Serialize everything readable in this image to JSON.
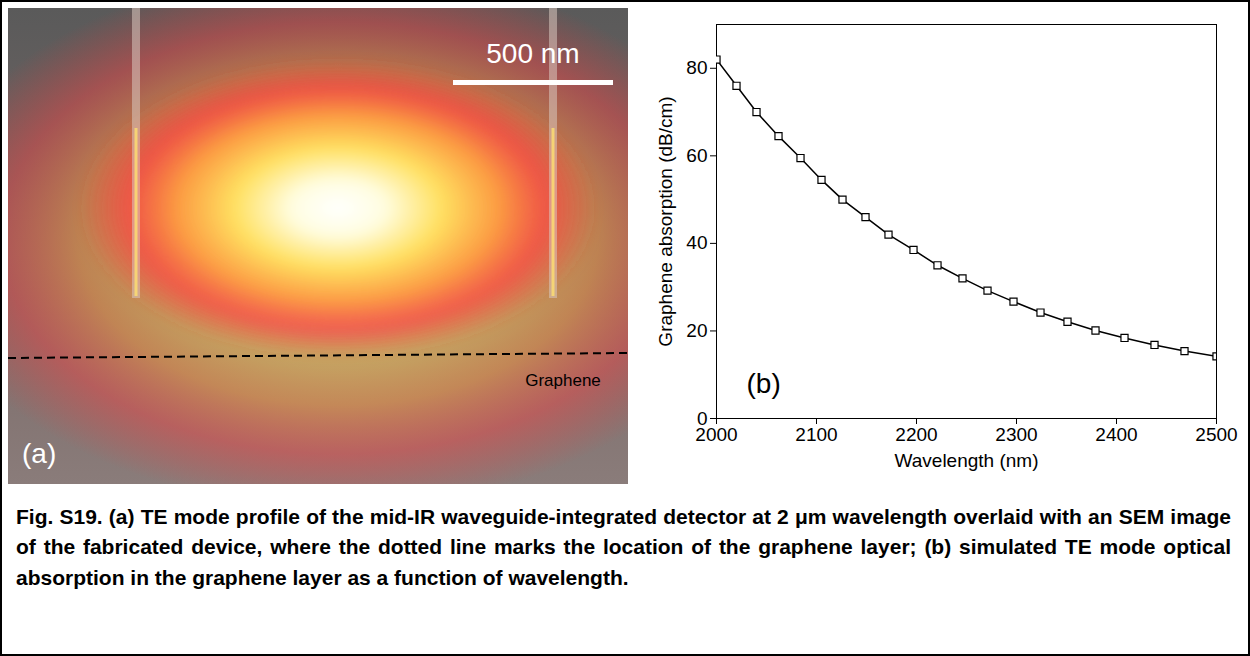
{
  "chart_data": {
    "type": "line",
    "x_label": "Wavelength (nm)",
    "y_label": "Graphene absorption (dB/cm)",
    "annotations": [
      "(b)"
    ],
    "x": [
      2000,
      2020,
      2040,
      2062,
      2084,
      2105,
      2126,
      2149,
      2172,
      2197,
      2221,
      2246,
      2271,
      2297,
      2324,
      2351,
      2379,
      2408,
      2438,
      2468,
      2500
    ],
    "values": [
      82,
      76,
      70,
      64.5,
      59.5,
      54.5,
      50,
      46,
      42,
      38.5,
      35,
      32,
      29.2,
      26.7,
      24.2,
      22.1,
      20.1,
      18.4,
      16.8,
      15.4,
      14.2
    ],
    "color": "#000000",
    "marker": "square",
    "line_style": "solid",
    "xlim": [
      2000,
      2500
    ],
    "xticks": [
      2000,
      2100,
      2200,
      2300,
      2400,
      2500
    ],
    "ylim": [
      0,
      90
    ],
    "yticks": [
      0,
      20,
      40,
      60,
      80
    ],
    "grid": false
  },
  "panel_a": {
    "label": "(a)",
    "scale_bar": "500 nm",
    "layer_label": "Graphene"
  },
  "caption": "Fig. S19. (a) TE mode profile of the mid-IR waveguide-integrated detector at 2 μm wavelength overlaid with an SEM image of the fabricated device, where the dotted line marks the location of the graphene layer; (b) simulated TE mode optical absorption in the graphene layer as a function of wavelength."
}
